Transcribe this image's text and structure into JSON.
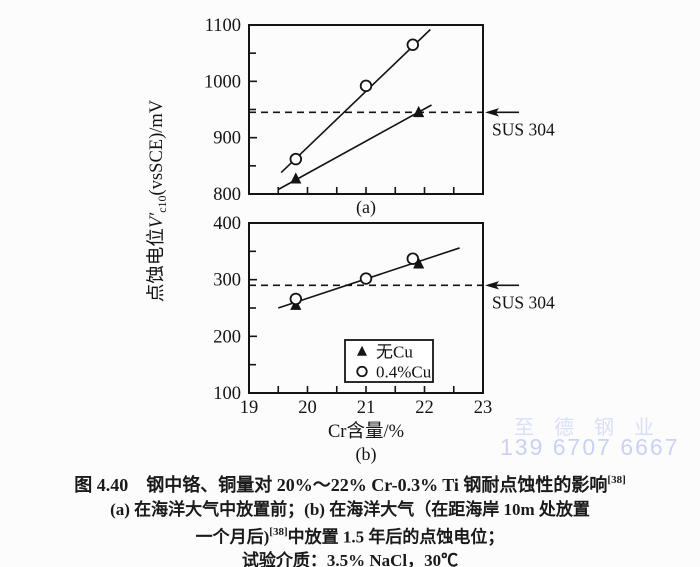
{
  "figure": {
    "y_axis_label": {
      "prefix": "点蚀电位",
      "symbol": "V′",
      "subscript": "c10",
      "suffix": "(vsSCE)/mV"
    },
    "x_axis_label": "Cr含量/%"
  },
  "chart_data": [
    {
      "id": "a",
      "type": "scatter",
      "subplot_label": "(a)",
      "xlabel": "",
      "ylabel": "点蚀电位V′c10(vsSCE)/mV",
      "xlim": [
        19,
        23
      ],
      "ylim": [
        800,
        1100
      ],
      "grid": false,
      "x_ticks": [
        19.5,
        20,
        20.5,
        21,
        21.5,
        22,
        22.5
      ],
      "x_tick_labels": [],
      "y_ticks_major": [
        800,
        900,
        1000,
        1100
      ],
      "y_ticks_minor": [
        850,
        950,
        1050
      ],
      "reference_line": {
        "value": 945,
        "label": "SUS 304",
        "style": "dashed"
      },
      "series": [
        {
          "name": "无Cu",
          "marker": "triangle-filled",
          "points": [
            [
              19.8,
              827
            ],
            [
              21.9,
              945
            ]
          ],
          "trend_line": [
            [
              19.5,
              808
            ],
            [
              22.12,
              958
            ]
          ]
        },
        {
          "name": "0.4%Cu",
          "marker": "circle-open",
          "points": [
            [
              19.8,
              862
            ],
            [
              21.0,
              992
            ],
            [
              21.8,
              1065
            ]
          ],
          "trend_line": [
            [
              19.55,
              838
            ],
            [
              22.1,
              1092
            ]
          ]
        }
      ]
    },
    {
      "id": "b",
      "type": "scatter",
      "subplot_label": "(b)",
      "xlabel": "Cr含量/%",
      "ylabel": "点蚀电位V′c10(vsSCE)/mV",
      "xlim": [
        19,
        23
      ],
      "ylim": [
        100,
        400
      ],
      "grid": false,
      "x_ticks": [
        19.5,
        20,
        20.5,
        21,
        21.5,
        22,
        22.5
      ],
      "x_tick_labels": [
        {
          "value": 19,
          "label": "19"
        },
        {
          "value": 20,
          "label": "20"
        },
        {
          "value": 21,
          "label": "21"
        },
        {
          "value": 22,
          "label": "22"
        },
        {
          "value": 23,
          "label": "23"
        }
      ],
      "y_ticks_major": [
        100,
        200,
        300,
        400
      ],
      "y_ticks_minor": [
        150,
        250,
        350
      ],
      "reference_line": {
        "value": 290,
        "label": "SUS 304",
        "style": "dashed"
      },
      "legend": {
        "position": "bottom-center",
        "items": [
          {
            "marker": "triangle-filled",
            "label": "无Cu"
          },
          {
            "marker": "circle-open",
            "label": "0.4%Cu"
          }
        ]
      },
      "series": [
        {
          "name": "无Cu",
          "marker": "triangle-filled",
          "points": [
            [
              19.8,
              255
            ],
            [
              21.9,
              328
            ]
          ]
        },
        {
          "name": "0.4%Cu",
          "marker": "circle-open",
          "points": [
            [
              19.8,
              266
            ],
            [
              21.0,
              302
            ],
            [
              21.8,
              337
            ]
          ],
          "trend_line": [
            [
              19.5,
              250
            ],
            [
              22.6,
              356
            ]
          ]
        }
      ]
    }
  ],
  "caption": {
    "line1": "图 4.40　钢中铬、铜量对 20%～22% Cr-0.3% Ti 钢耐点蚀性的影响",
    "line1_ref": "[38]",
    "line2": "(a) 在海洋大气中放置前；(b) 在海洋大气（在距海岸 10m 处放置",
    "line3_prefix": "一个月后)",
    "line3_ref": "[38]",
    "line3_suffix": "中放置 1.5 年后的点蚀电位；",
    "line4": "试验介质：3.5% NaCl，30℃"
  },
  "watermark": {
    "company": "至德钢业",
    "phone": "139 6707 6667"
  }
}
